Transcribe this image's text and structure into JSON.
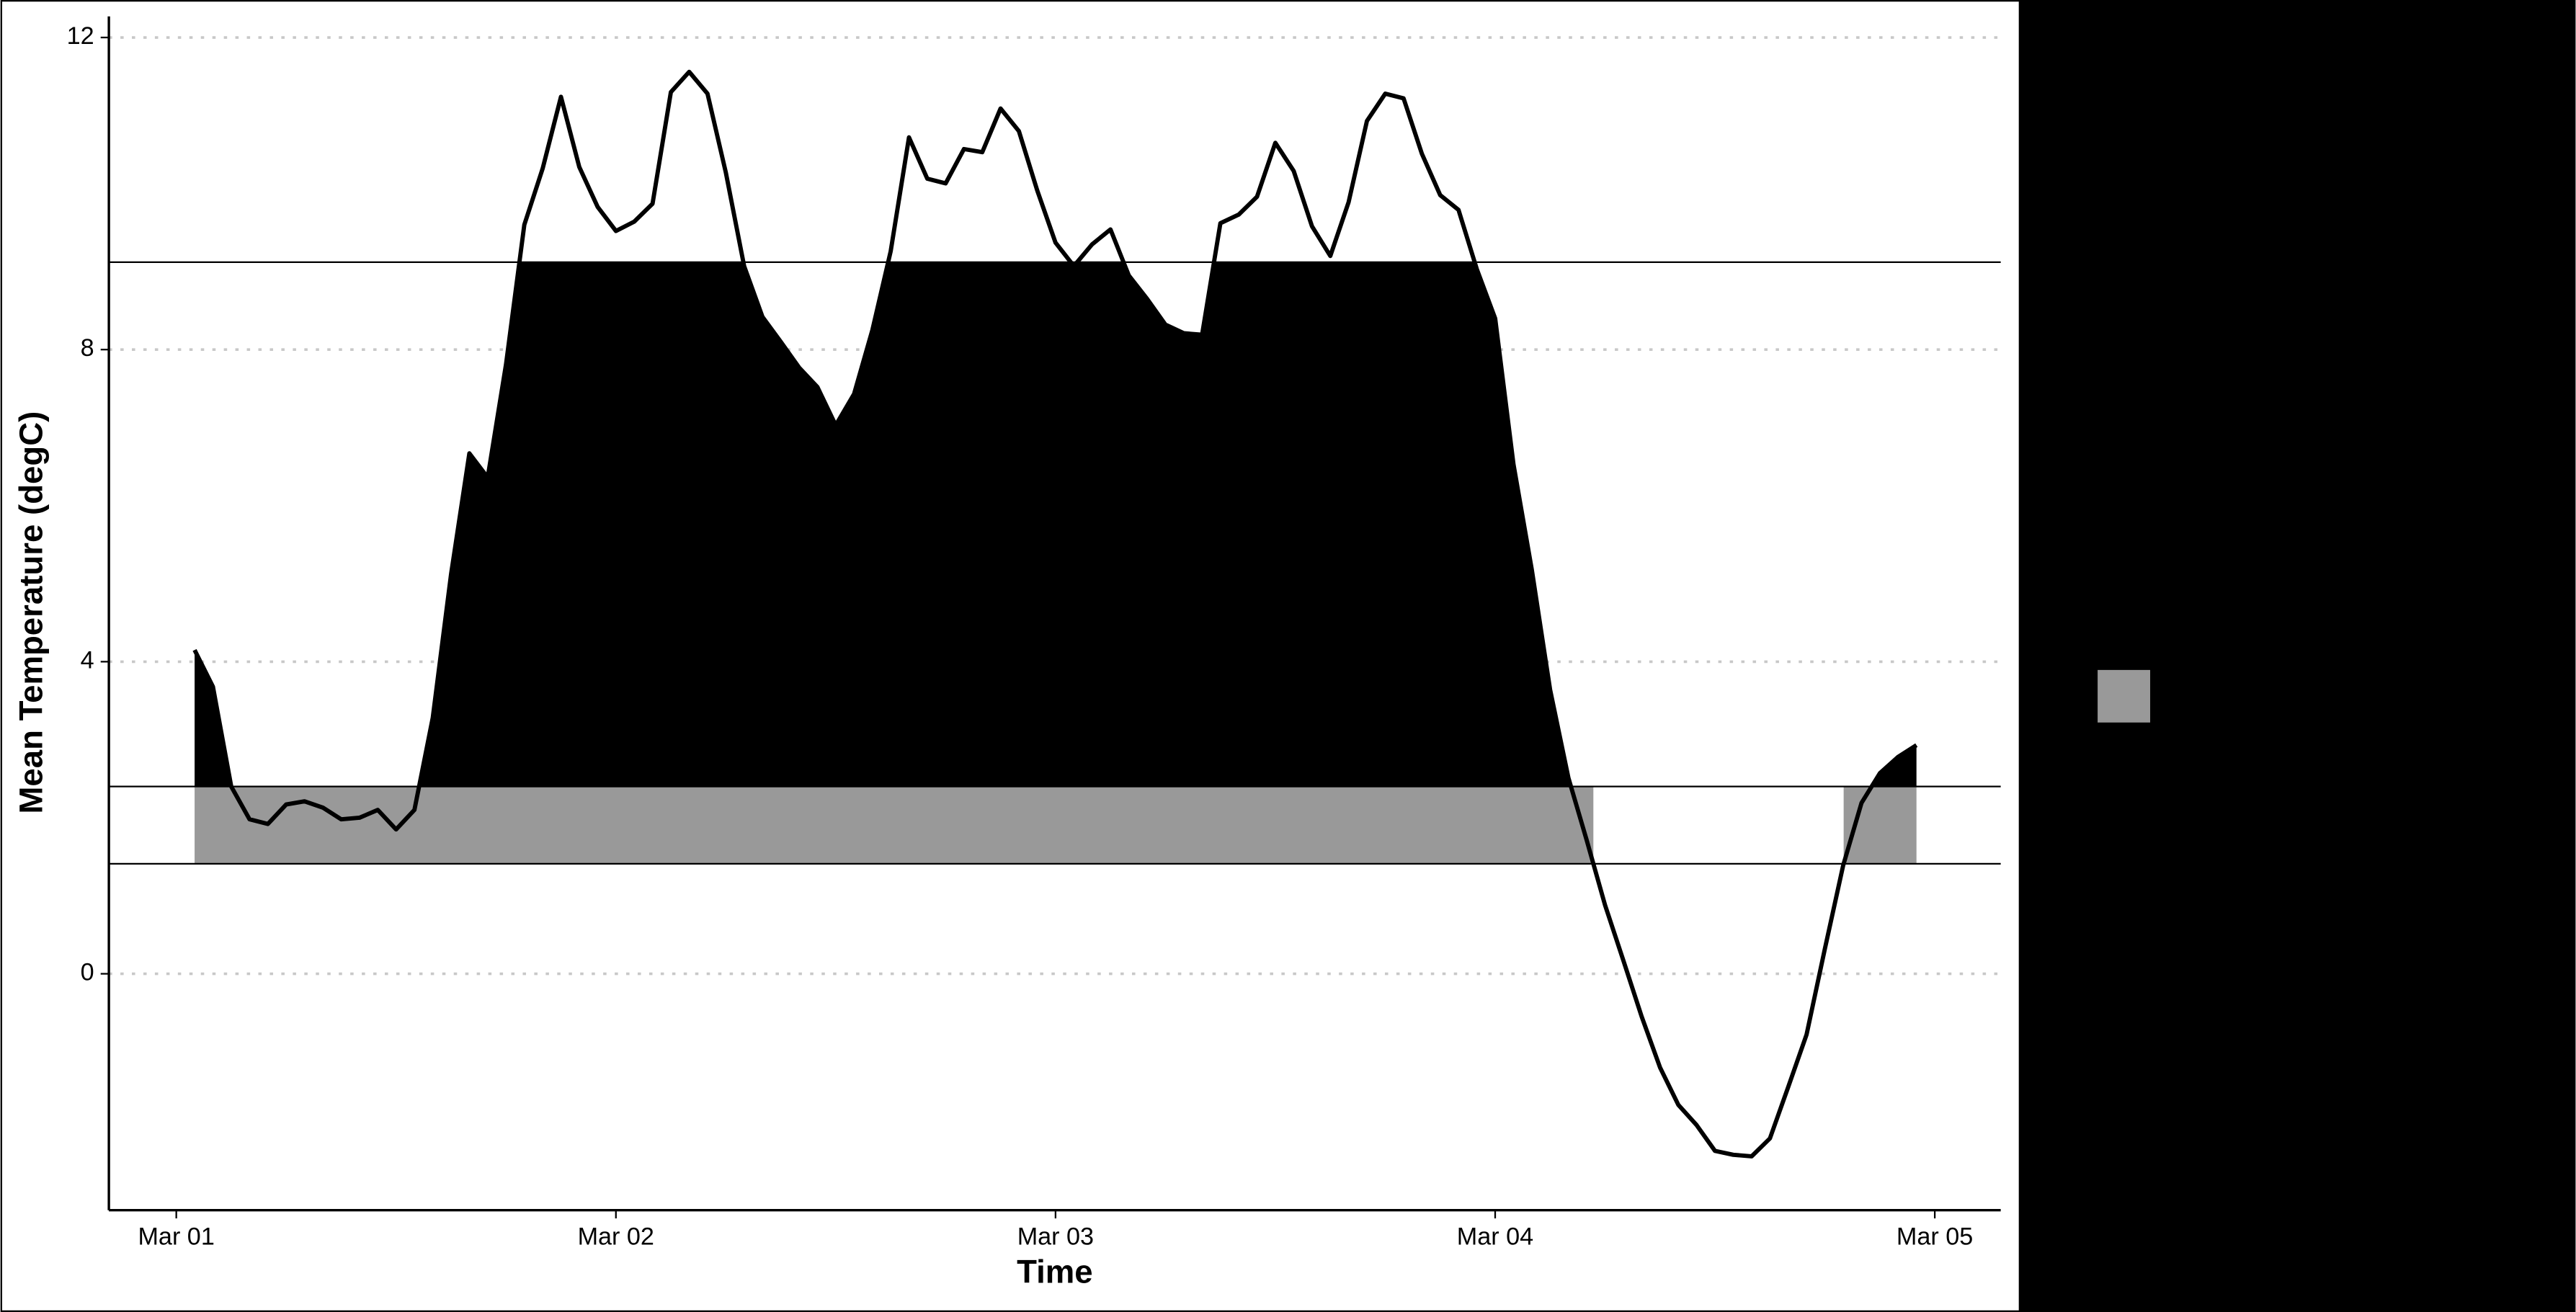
{
  "chart_data": {
    "type": "threshold-area",
    "xlabel": "Time",
    "ylabel": "Mean Temperature (degC)",
    "x": [
      1,
      2,
      3,
      4,
      5,
      6,
      7,
      8,
      9,
      10,
      11,
      12,
      13,
      14,
      15,
      16,
      17,
      18,
      19,
      20,
      21,
      22,
      23,
      24,
      25,
      26,
      27,
      28,
      29,
      30,
      31,
      32,
      33,
      34,
      35,
      36,
      37,
      38,
      39,
      40,
      41,
      42,
      43,
      44,
      45,
      46,
      47,
      48,
      49,
      50,
      51,
      52,
      53,
      54,
      55,
      56,
      57,
      58,
      59,
      60,
      61,
      62,
      63,
      64,
      65,
      66,
      67,
      68,
      69,
      70,
      71,
      72,
      73,
      74,
      75,
      76,
      77,
      78,
      79,
      80,
      81,
      82,
      83,
      84,
      85,
      86,
      87,
      88,
      89,
      90,
      91,
      92,
      93,
      94,
      95
    ],
    "series": [
      {
        "color": "#000000",
        "values": [
          4.15,
          3.68,
          2.4,
          1.98,
          1.92,
          2.17,
          2.21,
          2.13,
          1.98,
          2.0,
          2.1,
          1.85,
          2.1,
          3.28,
          5.12,
          6.67,
          6.36,
          7.81,
          9.6,
          10.32,
          11.24,
          10.34,
          9.83,
          9.52,
          9.64,
          9.87,
          11.3,
          11.56,
          11.28,
          10.27,
          9.07,
          8.42,
          8.1,
          7.77,
          7.52,
          7.03,
          7.43,
          8.25,
          9.26,
          10.72,
          10.19,
          10.13,
          10.57,
          10.53,
          11.09,
          10.8,
          10.04,
          9.37,
          9.07,
          9.35,
          9.54,
          8.95,
          8.65,
          8.32,
          8.21,
          8.19,
          9.62,
          9.73,
          9.96,
          10.65,
          10.29,
          9.58,
          9.2,
          9.89,
          10.93,
          11.28,
          11.22,
          10.51,
          9.98,
          9.79,
          9.03,
          8.4,
          6.53,
          5.18,
          3.64,
          2.51,
          1.71,
          0.88,
          0.17,
          -0.55,
          -1.2,
          -1.68,
          -1.94,
          -2.27,
          -2.32,
          -2.34,
          -2.11,
          -1.45,
          -0.78,
          0.32,
          1.39,
          2.19,
          2.57,
          2.78,
          2.93
        ]
      }
    ],
    "hlines": [
      9.12,
      2.4,
      1.41
    ],
    "fills": {
      "upper": "#000000",
      "lower": "#999999"
    },
    "xlim": [
      -3.68,
      99.6
    ],
    "ylim": [
      -3.03,
      12.27
    ],
    "xticks": [
      {
        "value": 0,
        "label": "Mar 01"
      },
      {
        "value": 24,
        "label": "Mar 02"
      },
      {
        "value": 48,
        "label": "Mar 03"
      },
      {
        "value": 72,
        "label": "Mar 04"
      },
      {
        "value": 96,
        "label": "Mar 05"
      }
    ],
    "yticks": [
      0,
      4,
      8,
      12
    ],
    "grid": true
  }
}
